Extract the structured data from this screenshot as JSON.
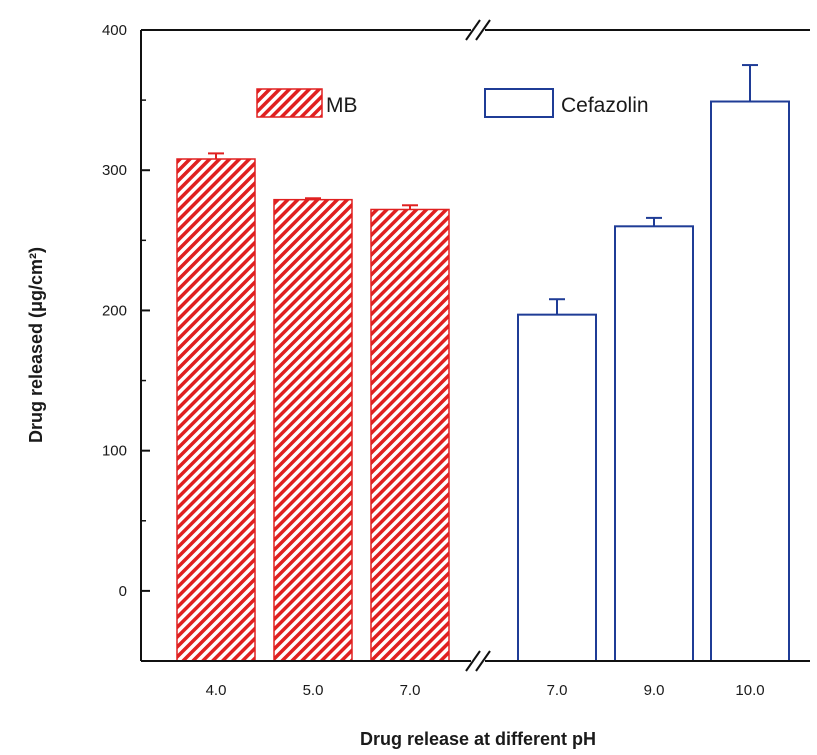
{
  "chart_data": {
    "type": "bar",
    "xlabel": "Drug release at different pH",
    "ylabel": "Drug released (μg/cm²)",
    "y_ticks": [
      0,
      100,
      200,
      300,
      400
    ],
    "ylim": [
      -50,
      400
    ],
    "y_axis_break": true,
    "x_axis_break_between_groups": true,
    "grid": false,
    "legend_position": "top",
    "series": [
      {
        "name": "MB",
        "color": "#e02020",
        "fill": "red diagonal hatch",
        "categories": [
          "4.0",
          "5.0",
          "7.0"
        ],
        "values": [
          308,
          279,
          272
        ],
        "errors": [
          4,
          1,
          3
        ]
      },
      {
        "name": "Cefazolin",
        "color": "#1f3c96",
        "fill": "white",
        "categories": [
          "7.0",
          "9.0",
          "10.0"
        ],
        "values": [
          197,
          260,
          349
        ],
        "errors": [
          11,
          6,
          26
        ]
      }
    ]
  }
}
